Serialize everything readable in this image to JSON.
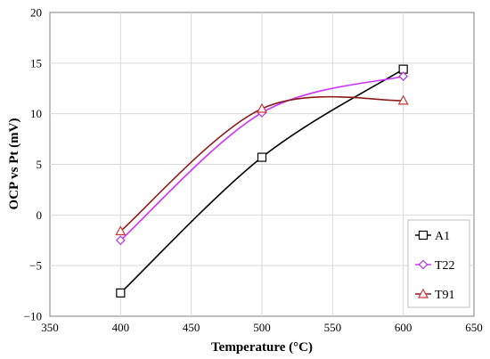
{
  "chart_data": {
    "type": "line",
    "title": "",
    "xlabel": "Temperature (°C)",
    "ylabel": "OCP vs Pt (mV)",
    "xlim": [
      350,
      650
    ],
    "ylim": [
      -10,
      20
    ],
    "x_ticks": [
      350,
      400,
      450,
      500,
      550,
      600,
      650
    ],
    "y_ticks": [
      -10,
      -5,
      0,
      5,
      10,
      15,
      20
    ],
    "x_tick_labels": [
      "350",
      "400",
      "450",
      "500",
      "550",
      "600",
      "650"
    ],
    "y_tick_labels": [
      "−10",
      "−5",
      "0",
      "5",
      "10",
      "15",
      "20"
    ],
    "grid": true,
    "legend_position": "bottom-right",
    "series": [
      {
        "name": "A1",
        "x": [
          400,
          500,
          600
        ],
        "values": [
          -7.7,
          5.7,
          14.4
        ],
        "color": "#000000",
        "marker": "square",
        "marker_color": "#000000"
      },
      {
        "name": "T22",
        "x": [
          400,
          500,
          600
        ],
        "values": [
          -2.5,
          10.1,
          13.7
        ],
        "color": "#cc33ff",
        "marker": "diamond",
        "marker_color": "#aa33dd"
      },
      {
        "name": "T91",
        "x": [
          400,
          500,
          600
        ],
        "values": [
          -1.6,
          10.5,
          11.3
        ],
        "color": "#8b1a1a",
        "marker": "triangle",
        "marker_color": "#cc3333"
      }
    ]
  }
}
